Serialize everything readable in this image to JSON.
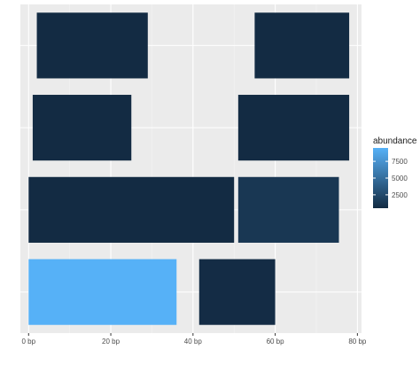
{
  "chart_data": {
    "type": "tile",
    "xlim": [
      -2,
      81
    ],
    "x_ticks": [
      {
        "value": 0,
        "label": "0 bp"
      },
      {
        "value": 20,
        "label": "20 bp"
      },
      {
        "value": 40,
        "label": "40 bp"
      },
      {
        "value": 60,
        "label": "60 bp"
      },
      {
        "value": 80,
        "label": "80 bp"
      }
    ],
    "rows": 4,
    "grid": true,
    "legend": {
      "title": "abundance",
      "placement": "right",
      "range": [
        500,
        9500
      ],
      "ticks": [
        {
          "value": 2500,
          "label": "2500"
        },
        {
          "value": 5000,
          "label": "5000"
        },
        {
          "value": 7500,
          "label": "7500"
        }
      ],
      "color_low": "#132b43",
      "color_high": "#56b1f7"
    },
    "tiles": [
      {
        "row": 1,
        "start": 0,
        "end": 36,
        "abundance": 9500
      },
      {
        "row": 1,
        "start": 41.5,
        "end": 60,
        "abundance": 600
      },
      {
        "row": 2,
        "start": 0,
        "end": 50,
        "abundance": 500
      },
      {
        "row": 2,
        "start": 51,
        "end": 75.5,
        "abundance": 1300
      },
      {
        "row": 3,
        "start": 1,
        "end": 25,
        "abundance": 500
      },
      {
        "row": 3,
        "start": 51,
        "end": 78,
        "abundance": 500
      },
      {
        "row": 4,
        "start": 2,
        "end": 29,
        "abundance": 500
      },
      {
        "row": 4,
        "start": 55,
        "end": 78,
        "abundance": 500
      }
    ]
  }
}
